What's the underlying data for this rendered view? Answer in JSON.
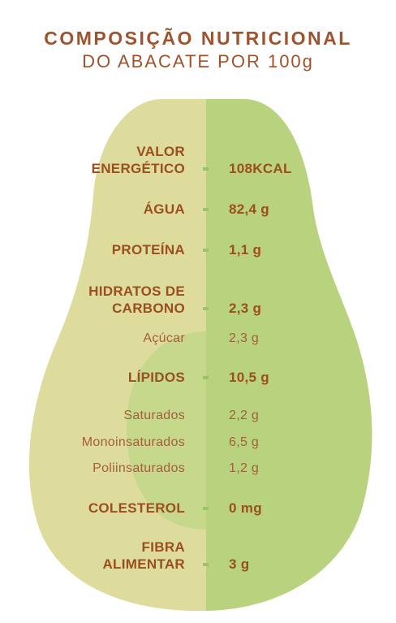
{
  "title": {
    "line1": "COMPOSIÇÃO NUTRICIONAL",
    "line2": "DO ABACATE POR 100g"
  },
  "colors": {
    "avocado_light": "#dedc9d",
    "avocado_right": "#b9d27e",
    "avocado_seed": "#c6d88c",
    "text": "#9b4e1f",
    "marker": "#9ec26a"
  },
  "nutrients": [
    {
      "label": "VALOR ENERGÉTICO",
      "value": "108KCAL",
      "level": "main"
    },
    {
      "label": "ÁGUA",
      "value": "82,4 g",
      "level": "main"
    },
    {
      "label": "PROTEÍNA",
      "value": "1,1 g",
      "level": "main"
    },
    {
      "label": "HIDRATOS DE CARBONO",
      "value": "2,3 g",
      "level": "main"
    },
    {
      "label": "Açúcar",
      "value": "2,3 g",
      "level": "sub"
    },
    {
      "label": "LÍPIDOS",
      "value": "10,5 g",
      "level": "main"
    },
    {
      "label": "Saturados",
      "value": "2,2 g",
      "level": "sub"
    },
    {
      "label": "Monoinsaturados",
      "value": "6,5 g",
      "level": "sub"
    },
    {
      "label": "Poliinsaturados",
      "value": "1,2 g",
      "level": "sub"
    },
    {
      "label": "COLESTEROL",
      "value": "0 mg",
      "level": "main"
    },
    {
      "label": "FIBRA ALIMENTAR",
      "value": "3 g",
      "level": "main"
    }
  ]
}
